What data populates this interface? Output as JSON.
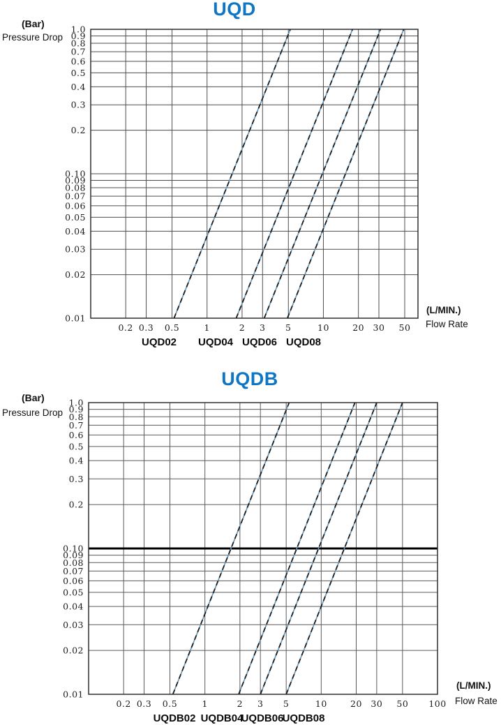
{
  "page": {
    "background": "#ffffff"
  },
  "chart_data": [
    {
      "type": "line",
      "title": "UQD",
      "title_color": "#0e76c4",
      "x_scale": "log",
      "y_scale": "log",
      "xlim": [
        0.1,
        65
      ],
      "ylim": [
        0.01,
        1.0
      ],
      "xlabel": "Flow Rate",
      "x_unit": "(L/MIN.)",
      "ylabel": "Pressure Drop",
      "y_unit": "(Bar)",
      "grid": true,
      "legend_position": "below-axis",
      "x_ticks": [
        0.2,
        0.3,
        0.5,
        1,
        2,
        3,
        5,
        10,
        20,
        30,
        50
      ],
      "x_tick_labels": [
        "0.2",
        "0.3",
        "0.5",
        "1",
        "2",
        "3",
        "5",
        "10",
        "20",
        "30",
        "50"
      ],
      "y_ticks": [
        1.0,
        0.9,
        0.8,
        0.7,
        0.6,
        0.5,
        0.4,
        0.3,
        0.2,
        0.1,
        0.09,
        0.08,
        0.07,
        0.06,
        0.05,
        0.04,
        0.03,
        0.02,
        0.01
      ],
      "y_tick_labels": [
        "1.0",
        "0.9",
        "0.8",
        "0.7",
        "0.6",
        "0.5",
        "0.4",
        "0.3",
        "0.2",
        "0.10",
        "0.09",
        "0.08",
        "0.07",
        "0.06",
        "0.05",
        "0.04",
        "0.03",
        "0.02",
        "0.01"
      ],
      "emphasized_y": null,
      "line_colors": {
        "solid": "#5e93b8",
        "dash": "#1c1c1c"
      },
      "grid_color": "#4d4d4d",
      "series": [
        {
          "name": "UQD02",
          "points": [
            [
              0.52,
              0.01
            ],
            [
              5.2,
              1.0
            ]
          ]
        },
        {
          "name": "UQD04",
          "points": [
            [
              1.78,
              0.01
            ],
            [
              17.8,
              1.0
            ]
          ]
        },
        {
          "name": "UQD06",
          "points": [
            [
              3.1,
              0.01
            ],
            [
              31.0,
              1.0
            ]
          ]
        },
        {
          "name": "UQD08",
          "points": [
            [
              4.9,
              0.01
            ],
            [
              49.0,
              1.0
            ]
          ]
        }
      ]
    },
    {
      "type": "line",
      "title": "UQDB",
      "title_color": "#0e76c4",
      "x_scale": "log",
      "y_scale": "log",
      "xlim": [
        0.1,
        100
      ],
      "ylim": [
        0.01,
        1.0
      ],
      "xlabel": "Flow Rate",
      "x_unit": "(L/MIN.)",
      "ylabel": "Pressure Drop",
      "y_unit": "(Bar)",
      "grid": true,
      "legend_position": "below-axis",
      "x_ticks": [
        0.2,
        0.3,
        0.5,
        1,
        2,
        3,
        5,
        10,
        20,
        30,
        50,
        100
      ],
      "x_tick_labels": [
        "0.2",
        "0.3",
        "0.5",
        "1",
        "2",
        "3",
        "5",
        "10",
        "20",
        "30",
        "50",
        "100"
      ],
      "y_ticks": [
        1.0,
        0.9,
        0.8,
        0.7,
        0.6,
        0.5,
        0.4,
        0.3,
        0.2,
        0.1,
        0.09,
        0.08,
        0.07,
        0.06,
        0.05,
        0.04,
        0.03,
        0.02,
        0.01
      ],
      "y_tick_labels": [
        "1.0",
        "0.9",
        "0.8",
        "0.7",
        "0.6",
        "0.5",
        "0.4",
        "0.3",
        "0.2",
        "0.10",
        "0.09",
        "0.08",
        "0.07",
        "0.06",
        "0.05",
        "0.04",
        "0.03",
        "0.02",
        "0.01"
      ],
      "emphasized_y": 0.1,
      "line_colors": {
        "solid": "#5e93b8",
        "dash": "#1c1c1c"
      },
      "grid_color": "#5a5a5a",
      "series": [
        {
          "name": "UQDB02",
          "points": [
            [
              0.53,
              0.01
            ],
            [
              5.3,
              1.0
            ]
          ]
        },
        {
          "name": "UQDB04",
          "points": [
            [
              1.95,
              0.01
            ],
            [
              19.5,
              1.0
            ]
          ]
        },
        {
          "name": "UQDB06",
          "points": [
            [
              3.0,
              0.01
            ],
            [
              30.0,
              1.0
            ]
          ]
        },
        {
          "name": "UQDB08",
          "points": [
            [
              5.0,
              0.01
            ],
            [
              50.0,
              1.0
            ]
          ]
        }
      ]
    }
  ]
}
